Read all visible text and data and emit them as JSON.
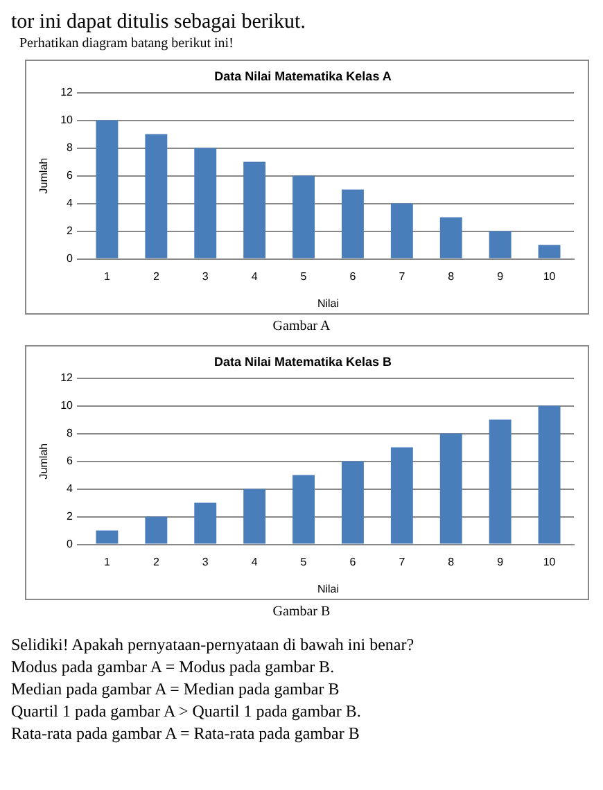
{
  "chart_data": [
    {
      "type": "bar",
      "title": "Data Nilai Matematika Kelas A",
      "xlabel": "Nilai",
      "ylabel": "Jumlah",
      "categories": [
        "1",
        "2",
        "3",
        "4",
        "5",
        "6",
        "7",
        "8",
        "9",
        "10"
      ],
      "values": [
        10,
        9,
        8,
        7,
        6,
        5,
        4,
        3,
        2,
        1
      ],
      "color": "#4a7ebb",
      "ylim": [
        0,
        12
      ],
      "yticks": [
        0,
        2,
        4,
        6,
        8,
        10,
        12
      ],
      "grid": "y",
      "annotations": [
        "tor ini dapat ditulis sebagai berikut.",
        "Perhatikan diagram batang berikut ini!",
        "Gambar A"
      ]
    },
    {
      "type": "bar",
      "title": "Data Nilai Matematika Kelas B",
      "xlabel": "Nilai",
      "ylabel": "Jumlah",
      "categories": [
        "1",
        "2",
        "3",
        "4",
        "5",
        "6",
        "7",
        "8",
        "9",
        "10"
      ],
      "values": [
        1,
        2,
        3,
        4,
        5,
        6,
        7,
        8,
        9,
        10
      ],
      "color": "#4a7ebb",
      "ylim": [
        0,
        12
      ],
      "yticks": [
        0,
        2,
        4,
        6,
        8,
        10,
        12
      ],
      "grid": "y",
      "annotations": [
        "Gambar B",
        "Selidiki! Apakah pernyataan-pernyataan di bawah ini benar?",
        "Modus pada gambar A = Modus pada gambar B.",
        "Median pada gambar A = Median pada gambar B",
        "Quartil 1 pada gambar A > Quartil 1 pada gambar B.",
        "Rata-rata pada gambar A = Rata-rata pada gambar B"
      ]
    }
  ]
}
